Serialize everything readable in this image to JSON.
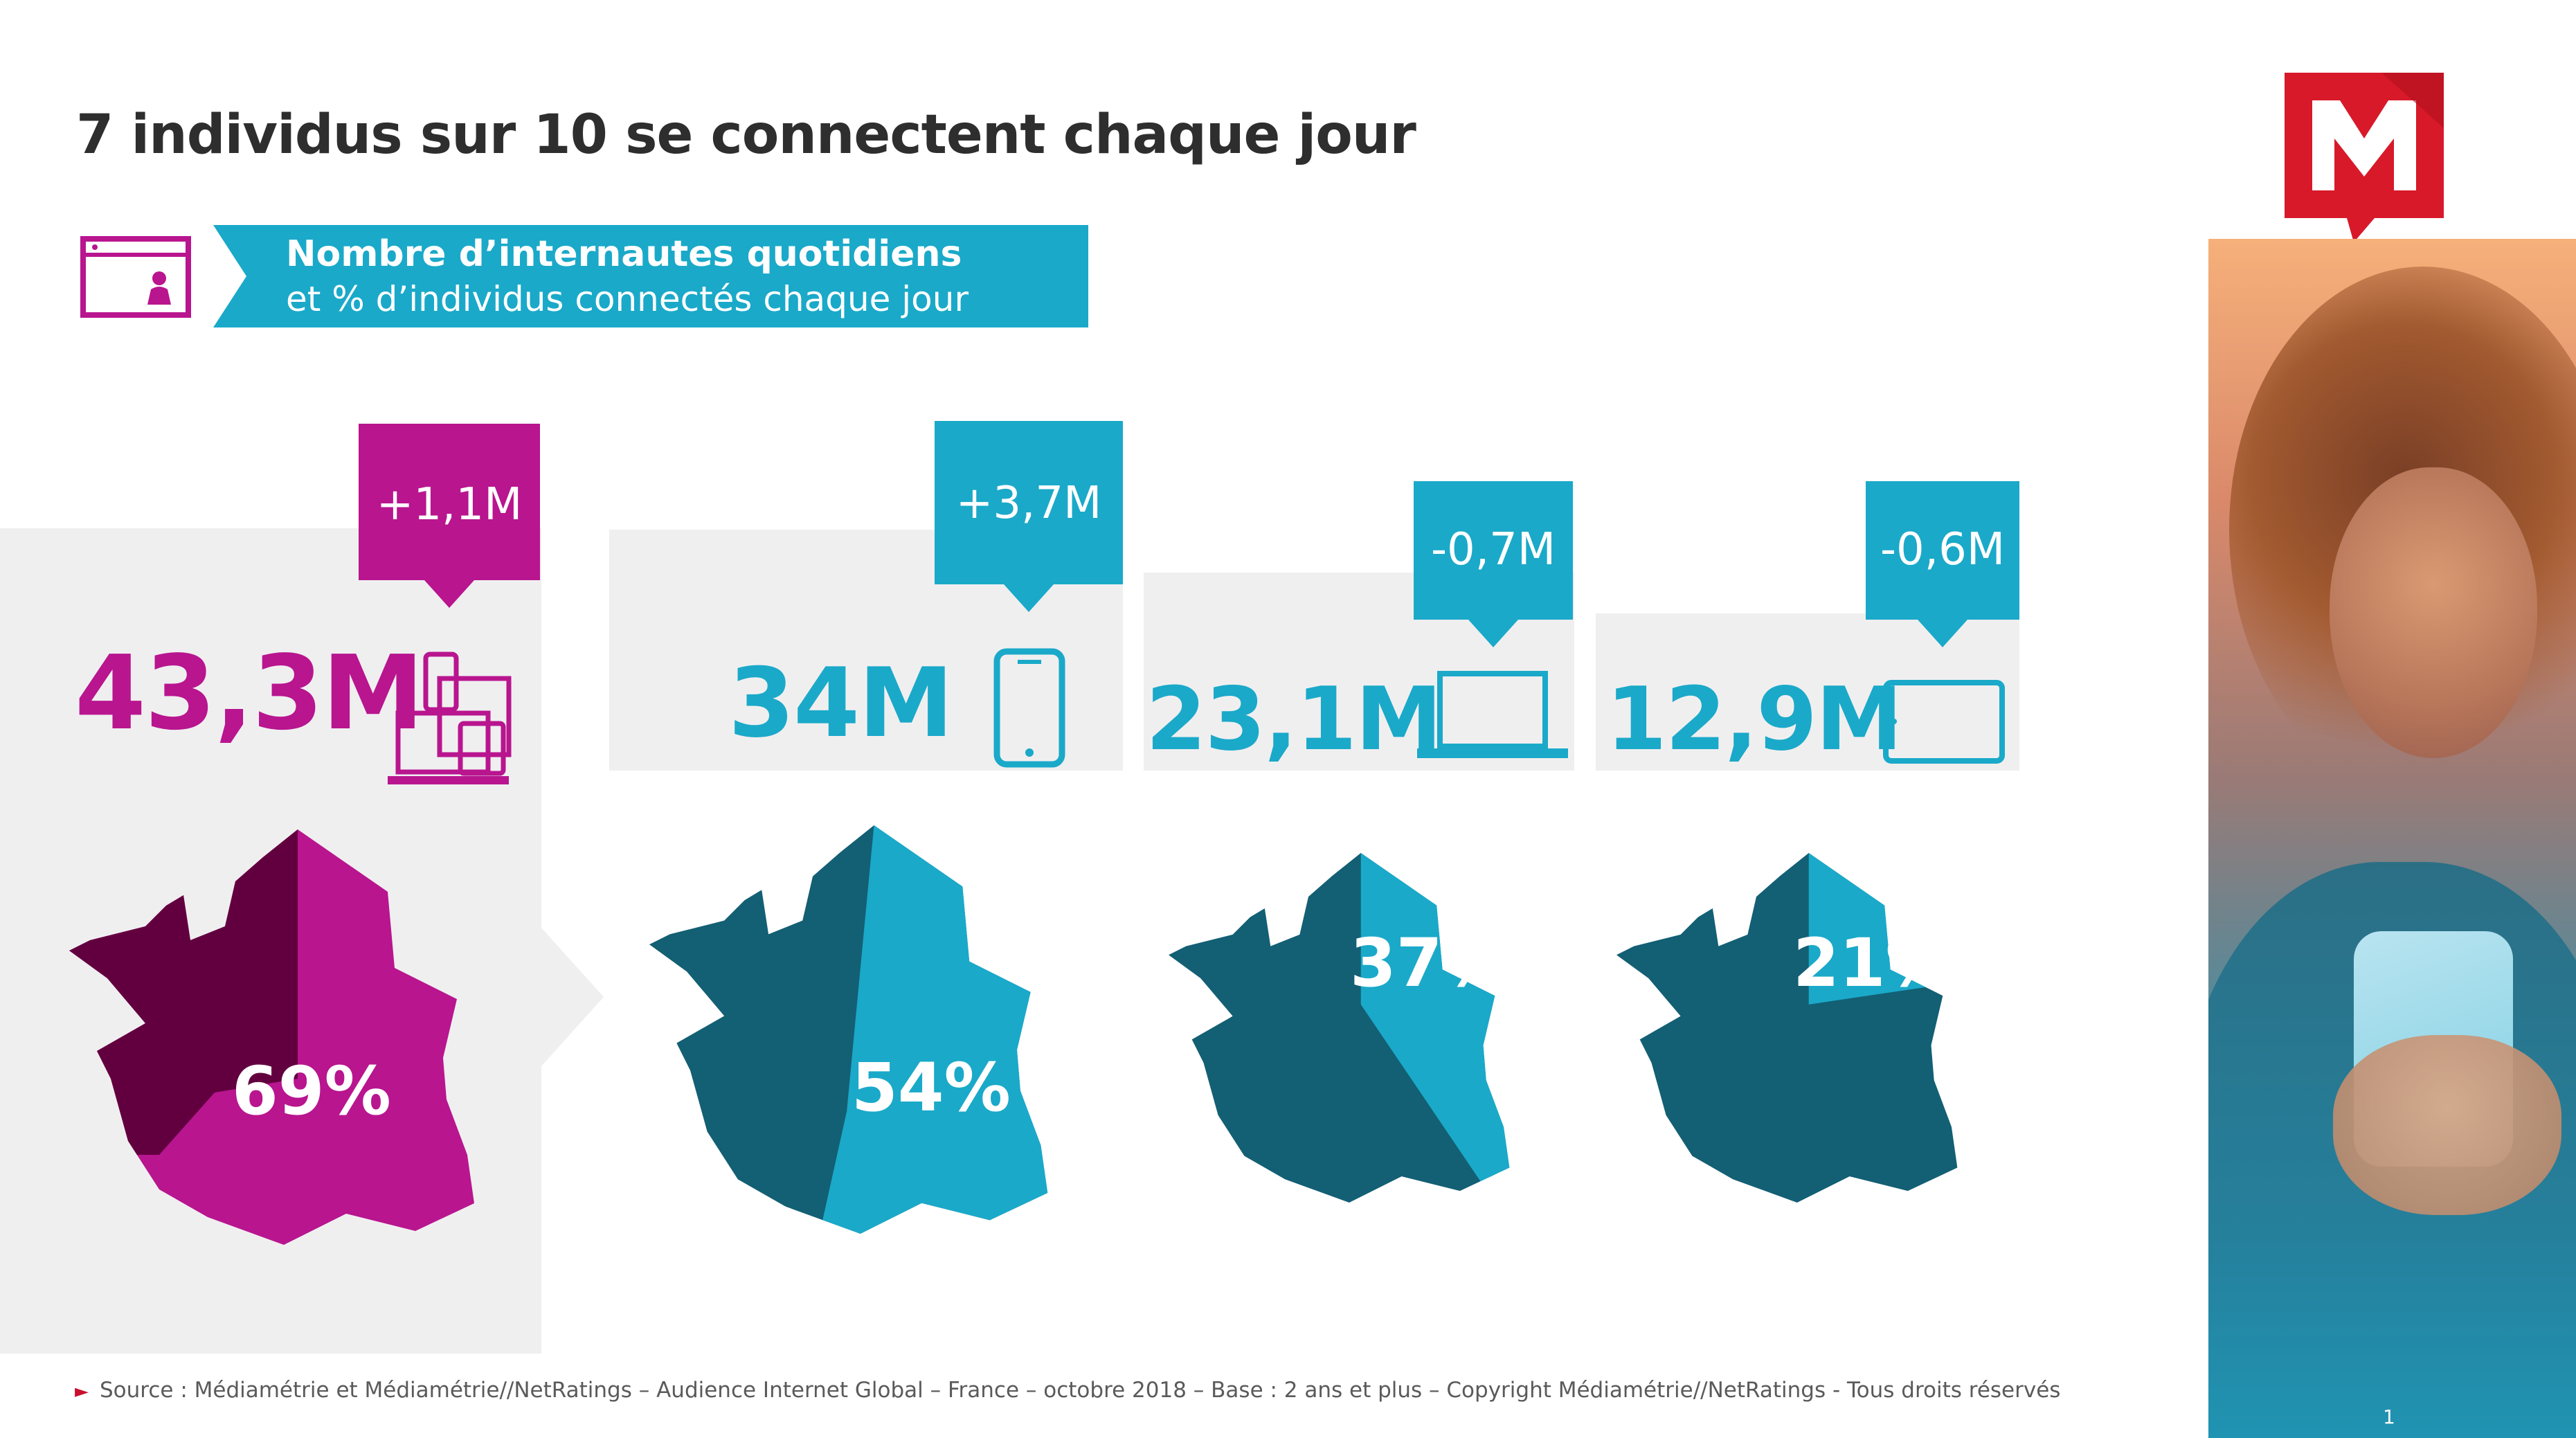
{
  "title": "7 individus sur 10 se connectent chaque jour",
  "banner": {
    "line1": "Nombre d’internautes quotidiens",
    "line2": "et % d’individus connectés chaque jour"
  },
  "columns": [
    {
      "device": "multi-device",
      "total": "43,3M",
      "change": "+1,1M",
      "percent": "69%",
      "percent_value": 69,
      "color": "#b8158f"
    },
    {
      "device": "smartphone",
      "total": "34M",
      "change": "+3,7M",
      "percent": "54%",
      "percent_value": 54,
      "color": "#1aa9c9"
    },
    {
      "device": "computer",
      "total": "23,1M",
      "change": "-0,7M",
      "percent": "37%",
      "percent_value": 37,
      "color": "#1aa9c9"
    },
    {
      "device": "tablet",
      "total": "12,9M",
      "change": "-0,6M",
      "percent": "21%",
      "percent_value": 21,
      "color": "#1aa9c9"
    }
  ],
  "colors": {
    "magenta": "#b8158f",
    "magenta_dark": "#62003f",
    "cyan": "#1aa9c9",
    "teal_dark": "#135f74",
    "panel_grey": "#f0eff0",
    "logo_red": "#d7192a"
  },
  "icons": [
    "screen-person-icon",
    "multi-device-icon",
    "smartphone-icon",
    "laptop-icon",
    "tablet-icon",
    "mediametrie-logo"
  ],
  "source": "Source : Médiamétrie et Médiamétrie//NetRatings – Audience Internet Global – France – octobre 2018 – Base : 2 ans et plus – Copyright Médiamétrie//NetRatings - Tous droits réservés",
  "page_number": "1"
}
